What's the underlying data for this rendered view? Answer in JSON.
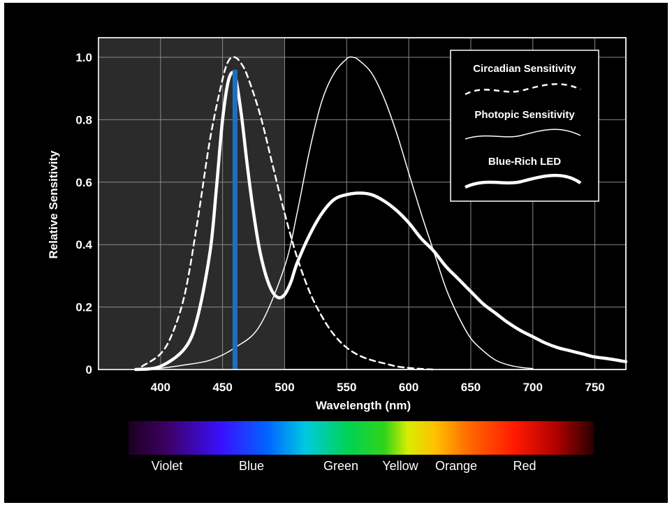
{
  "chart_data": {
    "type": "line",
    "xlabel": "Wavelength (nm)",
    "ylabel": "Relative Sensitivity",
    "xlim": [
      350,
      775
    ],
    "ylim": [
      0,
      1.0
    ],
    "x_ticks": [
      "400",
      "450",
      "500",
      "550",
      "600",
      "650",
      "700",
      "750"
    ],
    "y_ticks": [
      "0",
      "0.2",
      "0.4",
      "0.6",
      "0.8",
      "1.0"
    ],
    "grid": true,
    "legend_placement": "top-right",
    "legend": [
      {
        "label": "Circadian Sensitivity",
        "style": "dashed"
      },
      {
        "label": "Photopic Sensitivity",
        "style": "thin"
      },
      {
        "label": "Blue-Rich LED",
        "style": "thick"
      }
    ],
    "shaded_region": {
      "x_start": 350,
      "x_end": 500,
      "color": "#2b2b2b"
    },
    "highlight_line": {
      "x": 460,
      "y": 0.96,
      "color": "#1f6fc0"
    },
    "series": [
      {
        "name": "Circadian Sensitivity",
        "style": "dashed",
        "x": [
          385,
          400,
          410,
          420,
          430,
          440,
          450,
          455,
          460,
          465,
          470,
          480,
          490,
          500,
          510,
          520,
          530,
          540,
          550,
          560,
          570,
          580,
          590,
          600,
          610,
          620
        ],
        "y": [
          0.01,
          0.05,
          0.12,
          0.25,
          0.48,
          0.74,
          0.93,
          0.99,
          1.0,
          0.98,
          0.94,
          0.82,
          0.66,
          0.5,
          0.36,
          0.25,
          0.17,
          0.11,
          0.07,
          0.045,
          0.03,
          0.02,
          0.01,
          0.005,
          0.002,
          0.0
        ]
      },
      {
        "name": "Photopic Sensitivity",
        "style": "thin",
        "x": [
          380,
          400,
          420,
          440,
          460,
          480,
          500,
          510,
          520,
          530,
          540,
          550,
          555,
          560,
          570,
          580,
          590,
          600,
          610,
          620,
          630,
          640,
          650,
          660,
          670,
          680,
          690,
          700
        ],
        "y": [
          0.0,
          0.004,
          0.015,
          0.03,
          0.07,
          0.14,
          0.33,
          0.5,
          0.7,
          0.86,
          0.95,
          0.995,
          1.0,
          0.99,
          0.95,
          0.87,
          0.76,
          0.63,
          0.5,
          0.38,
          0.26,
          0.17,
          0.1,
          0.06,
          0.03,
          0.015,
          0.007,
          0.003
        ]
      },
      {
        "name": "Blue-Rich LED",
        "style": "thick",
        "x": [
          380,
          400,
          420,
          430,
          440,
          445,
          450,
          455,
          460,
          465,
          470,
          475,
          480,
          485,
          490,
          495,
          500,
          505,
          510,
          520,
          530,
          540,
          550,
          560,
          570,
          580,
          590,
          600,
          610,
          620,
          630,
          640,
          650,
          660,
          670,
          680,
          690,
          700,
          710,
          720,
          730,
          740,
          750,
          760,
          775
        ],
        "y": [
          0.0,
          0.01,
          0.07,
          0.17,
          0.38,
          0.58,
          0.8,
          0.93,
          0.94,
          0.82,
          0.65,
          0.5,
          0.38,
          0.3,
          0.25,
          0.23,
          0.24,
          0.28,
          0.34,
          0.43,
          0.5,
          0.545,
          0.56,
          0.565,
          0.56,
          0.54,
          0.51,
          0.47,
          0.42,
          0.38,
          0.33,
          0.29,
          0.25,
          0.21,
          0.18,
          0.15,
          0.125,
          0.105,
          0.085,
          0.07,
          0.06,
          0.05,
          0.04,
          0.035,
          0.025
        ]
      }
    ]
  },
  "spectrum": {
    "labels": [
      "Violet",
      "Blue",
      "Green",
      "Yellow",
      "Orange",
      "Red"
    ]
  }
}
